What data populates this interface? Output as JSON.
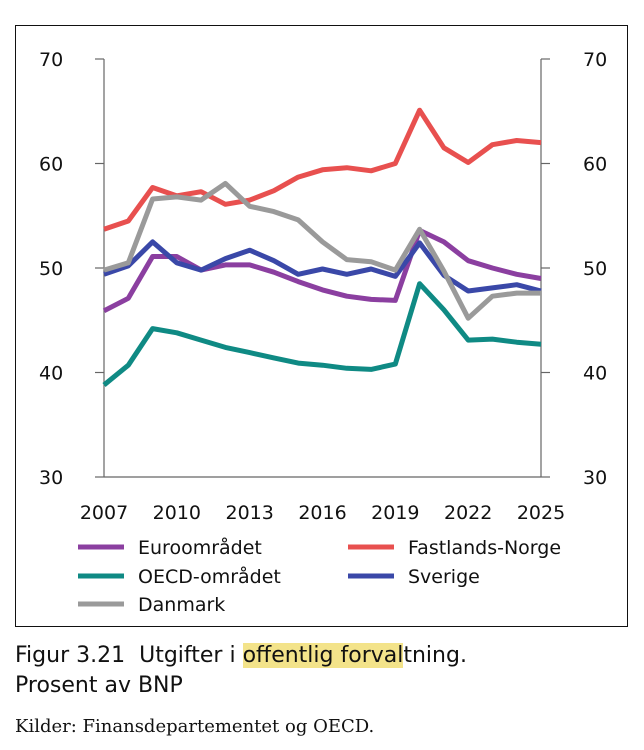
{
  "chart_data": {
    "type": "line",
    "title": "",
    "xlabel": "",
    "ylabel": "",
    "x": [
      2007,
      2008,
      2009,
      2010,
      2011,
      2012,
      2013,
      2014,
      2015,
      2016,
      2017,
      2018,
      2019,
      2020,
      2021,
      2022,
      2023,
      2024,
      2025
    ],
    "xticks": [
      "2007",
      "2010",
      "2013",
      "2016",
      "2019",
      "2022",
      "2025"
    ],
    "ylim": [
      30,
      70
    ],
    "yticks": [
      "30",
      "40",
      "50",
      "60",
      "70"
    ],
    "grid": false,
    "series": [
      {
        "name": "Euroområdet",
        "color": "#8b3fa0",
        "values": [
          45.9,
          47.1,
          51.1,
          51.1,
          49.8,
          50.3,
          50.3,
          49.6,
          48.7,
          47.9,
          47.3,
          47.0,
          46.9,
          53.6,
          52.5,
          50.7,
          50.0,
          49.4,
          49.0
        ]
      },
      {
        "name": "Fastlands-Norge",
        "color": "#e8504f",
        "values": [
          53.7,
          54.5,
          57.7,
          56.9,
          57.3,
          56.1,
          56.5,
          57.4,
          58.7,
          59.4,
          59.6,
          59.3,
          60.0,
          65.1,
          61.5,
          60.1,
          61.8,
          62.2,
          62.0
        ]
      },
      {
        "name": "OECD-området",
        "color": "#0f8a84",
        "values": [
          38.8,
          40.7,
          44.2,
          43.8,
          43.1,
          42.4,
          41.9,
          41.4,
          40.9,
          40.7,
          40.4,
          40.3,
          40.8,
          48.5,
          46.0,
          43.1,
          43.2,
          42.9,
          42.7
        ]
      },
      {
        "name": "Sverige",
        "color": "#3a48a8",
        "values": [
          49.4,
          50.2,
          52.5,
          50.5,
          49.8,
          50.9,
          51.7,
          50.7,
          49.4,
          49.9,
          49.4,
          49.9,
          49.2,
          52.4,
          49.3,
          47.8,
          48.1,
          48.4,
          47.8
        ]
      },
      {
        "name": "Danmark",
        "color": "#9a9a9a",
        "values": [
          49.8,
          50.5,
          56.6,
          56.8,
          56.5,
          58.1,
          55.9,
          55.4,
          54.6,
          52.5,
          50.8,
          50.6,
          49.8,
          53.7,
          49.7,
          45.2,
          47.3,
          47.6,
          47.6
        ]
      }
    ]
  },
  "caption": {
    "figure_number": "Figur 3.21",
    "title_before": "Utgifter i ",
    "title_highlight": "offentlig forval",
    "title_after": "tning.",
    "subtitle": "Prosent av BNP"
  },
  "source": "Kilder: Finansdepartementet og OECD.",
  "colors": {
    "highlight": "#f3e38a"
  }
}
